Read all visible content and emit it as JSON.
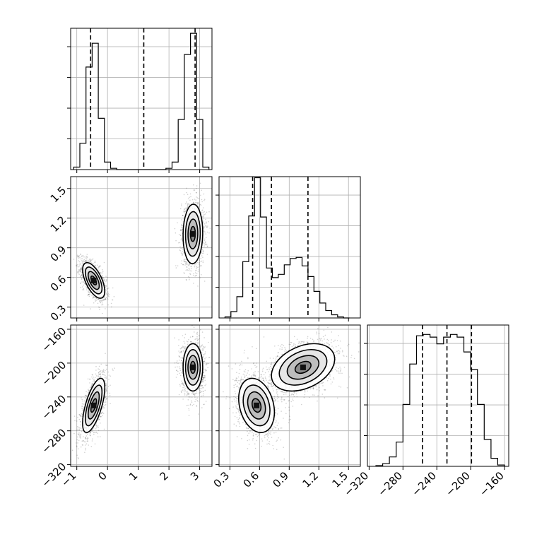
{
  "chart_data": {
    "type": "corner",
    "title": "",
    "parameters": [
      {
        "index": 0,
        "range": [
          -1.2,
          3.4
        ],
        "ticks": [
          -1,
          0,
          1,
          2,
          3
        ],
        "tick_labels": [
          "−1",
          "0",
          "1",
          "2",
          "3"
        ],
        "quantiles": [
          -0.55,
          1.18,
          2.85
        ]
      },
      {
        "index": 1,
        "range": [
          0.19,
          1.62
        ],
        "ticks": [
          0.3,
          0.6,
          0.9,
          1.2,
          1.5
        ],
        "tick_labels": [
          "0.3",
          "0.6",
          "0.9",
          "1.2",
          "1.5"
        ],
        "quantiles": [
          0.53,
          0.72,
          1.09
        ]
      },
      {
        "index": 2,
        "range": [
          -322,
          -155
        ],
        "ticks": [
          -320,
          -280,
          -240,
          -200,
          -160
        ],
        "tick_labels": [
          "−320",
          "−280",
          "−240",
          "−200",
          "−160"
        ],
        "quantiles": [
          -257,
          -228,
          -199
        ]
      }
    ],
    "histograms": [
      {
        "param": 0,
        "bin_edges": [
          -1.1,
          -0.9,
          -0.7,
          -0.5,
          -0.3,
          -0.1,
          0.1,
          0.3,
          1.9,
          2.1,
          2.3,
          2.5,
          2.7,
          2.9,
          3.1,
          3.3
        ],
        "counts": [
          20,
          210,
          820,
          1010,
          410,
          60,
          10,
          0,
          10,
          60,
          400,
          920,
          1090,
          400,
          20
        ],
        "ymax": 1130
      },
      {
        "param": 1,
        "bin_edges": [
          0.25,
          0.31,
          0.37,
          0.43,
          0.49,
          0.55,
          0.61,
          0.67,
          0.73,
          0.79,
          0.85,
          0.91,
          0.97,
          1.03,
          1.09,
          1.15,
          1.21,
          1.27,
          1.33,
          1.39,
          1.45,
          1.51
        ],
        "counts": [
          10,
          60,
          200,
          530,
          960,
          1320,
          950,
          470,
          380,
          410,
          500,
          560,
          570,
          490,
          390,
          250,
          140,
          70,
          30,
          10,
          0
        ],
        "ymax": 1330
      },
      {
        "param": 2,
        "bin_edges": [
          -312,
          -304,
          -296,
          -288,
          -280,
          -272,
          -264,
          -256,
          -248,
          -240,
          -232,
          -224,
          -216,
          -208,
          -200,
          -192,
          -184,
          -176,
          -168,
          -160
        ],
        "counts": [
          5,
          20,
          70,
          180,
          460,
          760,
          970,
          980,
          960,
          910,
          960,
          980,
          960,
          850,
          720,
          460,
          200,
          60,
          10
        ],
        "ymax": 1050
      }
    ],
    "contour_panels": [
      {
        "x_param": 0,
        "y_param": 1,
        "modes": [
          {
            "x": -0.45,
            "y": 0.57,
            "sx": 0.18,
            "sy": 0.09,
            "rho": -0.6,
            "weight": 0.5
          },
          {
            "x": 2.78,
            "y": 1.04,
            "sx": 0.16,
            "sy": 0.15,
            "rho": 0.05,
            "weight": 0.5
          }
        ]
      },
      {
        "x_param": 0,
        "y_param": 2,
        "modes": [
          {
            "x": -0.45,
            "y": -250,
            "sx": 0.18,
            "sy": 16,
            "rho": 0.65,
            "weight": 0.5
          },
          {
            "x": 2.78,
            "y": -205,
            "sx": 0.16,
            "sy": 14,
            "rho": 0.0,
            "weight": 0.5
          }
        ]
      },
      {
        "x_param": 1,
        "y_param": 2,
        "modes": [
          {
            "x": 0.57,
            "y": -250,
            "sx": 0.09,
            "sy": 16,
            "rho": -0.25,
            "weight": 0.5
          },
          {
            "x": 1.04,
            "y": -205,
            "sx": 0.16,
            "sy": 14,
            "rho": 0.35,
            "weight": 0.5
          }
        ]
      }
    ],
    "contour_levels": [
      0.5,
      1.0,
      1.5,
      2.0
    ],
    "grid": true,
    "legend": "none"
  }
}
